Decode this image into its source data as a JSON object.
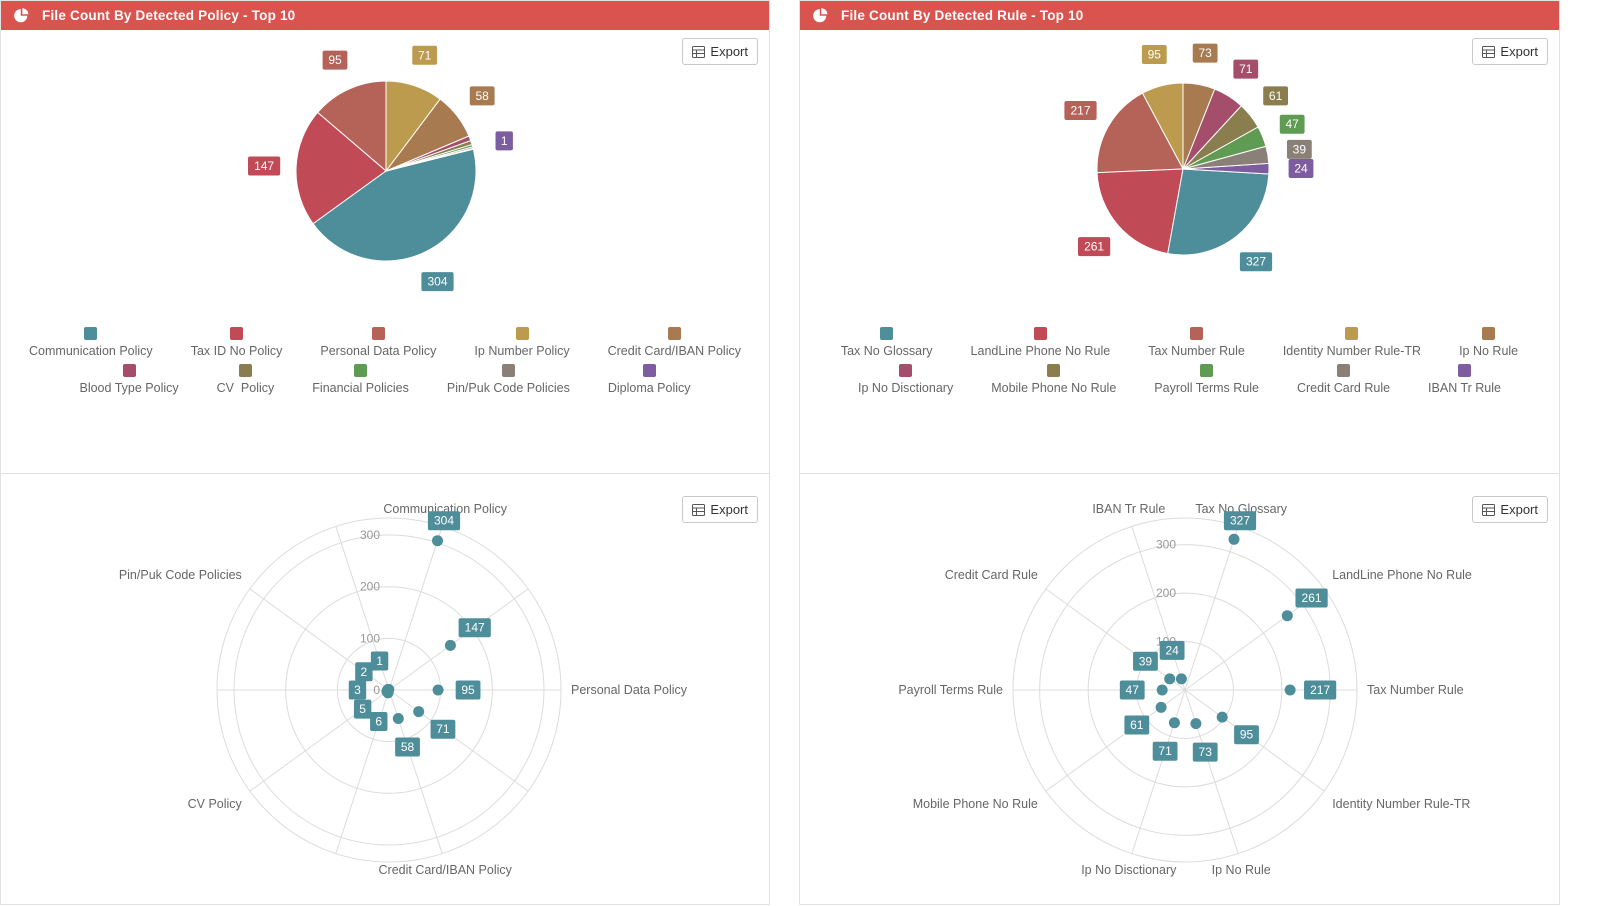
{
  "ui": {
    "export_label": "Export",
    "header_color": "#d9534f",
    "panels": [
      {
        "title": "File Count By Detected Policy - Top 10"
      },
      {
        "title": "File Count By Detected Rule - Top 10"
      }
    ]
  },
  "chart_data": [
    {
      "type": "pie",
      "title": "File Count By Detected Policy - Top 10",
      "legend_position": "bottom",
      "start_angle": 90,
      "series": [
        {
          "name": "Communication Policy",
          "value": 304,
          "color": "#4e8d9a",
          "labeled": true
        },
        {
          "name": "Tax ID No Policy",
          "value": 147,
          "color": "#c04a56",
          "labeled": true
        },
        {
          "name": "Personal Data Policy",
          "value": 95,
          "color": "#b56358",
          "labeled": true
        },
        {
          "name": "Ip Number Policy",
          "value": 71,
          "color": "#bd9b4e",
          "labeled": true
        },
        {
          "name": "Credit Card/IBAN Policy",
          "value": 58,
          "color": "#a87a50",
          "labeled": true
        },
        {
          "name": "Blood Type Policy",
          "value": 6,
          "color": "#a44e6c",
          "labeled": false
        },
        {
          "name": "CV  Policy",
          "value": 5,
          "color": "#8a7d4e",
          "labeled": false
        },
        {
          "name": "Financial Policies",
          "value": 3,
          "color": "#5f9b52",
          "labeled": false
        },
        {
          "name": "Pin/Puk Code Policies",
          "value": 2,
          "color": "#8b8077",
          "labeled": false
        },
        {
          "name": "Diploma Policy",
          "value": 1,
          "color": "#7d5d9f",
          "labeled": true
        }
      ],
      "draw_order_ccw": [
        "Personal Data Policy",
        "Tax ID No Policy",
        "Communication Policy",
        "Diploma Policy",
        "Pin/Puk Code Policies",
        "Financial Policies",
        "CV  Policy",
        "Blood Type Policy",
        "Credit Card/IBAN Policy",
        "Ip Number Policy"
      ]
    },
    {
      "type": "pie",
      "title": "File Count By Detected Rule - Top 10",
      "legend_position": "bottom",
      "start_angle": 90,
      "series": [
        {
          "name": "Tax No Glossary",
          "value": 327,
          "color": "#4e8d9a",
          "labeled": true
        },
        {
          "name": "LandLine Phone No Rule",
          "value": 261,
          "color": "#c04a56",
          "labeled": true
        },
        {
          "name": "Tax Number Rule",
          "value": 217,
          "color": "#b56358",
          "labeled": true
        },
        {
          "name": "Identity Number Rule-TR",
          "value": 95,
          "color": "#bd9b4e",
          "labeled": true
        },
        {
          "name": "Ip No Rule",
          "value": 73,
          "color": "#a87a50",
          "labeled": true
        },
        {
          "name": "Ip No Disctionary",
          "value": 71,
          "color": "#a44e6c",
          "labeled": true
        },
        {
          "name": "Mobile Phone No Rule",
          "value": 61,
          "color": "#8a7d4e",
          "labeled": true
        },
        {
          "name": "Payroll Terms Rule",
          "value": 47,
          "color": "#5f9b52",
          "labeled": true
        },
        {
          "name": "Credit Card Rule",
          "value": 39,
          "color": "#8b8077",
          "labeled": true
        },
        {
          "name": "IBAN Tr Rule",
          "value": 24,
          "color": "#7d5d9f",
          "labeled": true
        }
      ],
      "draw_order_ccw": [
        "Identity Number Rule-TR",
        "Tax Number Rule",
        "LandLine Phone No Rule",
        "Tax No Glossary",
        "IBAN Tr Rule",
        "Credit Card Rule",
        "Payroll Terms Rule",
        "Mobile Phone No Rule",
        "Ip No Disctionary",
        "Ip No Rule"
      ]
    },
    {
      "type": "scatter",
      "subtype": "polar",
      "categories": [
        "Communication Policy",
        "Tax ID No Policy",
        "Personal Data Policy",
        "Ip Number Policy",
        "Credit Card/IBAN Policy",
        "Blood Type Policy",
        "CV  Policy",
        "Financial Policies",
        "Pin/Puk Code Policies",
        "Diploma Policy"
      ],
      "values": [
        304,
        147,
        95,
        71,
        58,
        6,
        5,
        3,
        2,
        1
      ],
      "radial_ticks": [
        0,
        100,
        200,
        300
      ],
      "rmax": 333,
      "start_angle": 72,
      "angle_step": -36,
      "axis_label_every": 2,
      "grid": true,
      "point_color": "#4e8d9a"
    },
    {
      "type": "scatter",
      "subtype": "polar",
      "categories": [
        "Tax No Glossary",
        "LandLine Phone No Rule",
        "Tax Number Rule",
        "Identity Number Rule-TR",
        "Ip No Rule",
        "Ip No Disctionary",
        "Mobile Phone No Rule",
        "Payroll Terms Rule",
        "Credit Card Rule",
        "IBAN Tr Rule"
      ],
      "values": [
        327,
        261,
        217,
        95,
        73,
        71,
        61,
        47,
        39,
        24
      ],
      "radial_ticks": [
        100,
        200,
        300
      ],
      "rmax": 355,
      "start_angle": 72,
      "angle_step": -36,
      "axis_label_every": 1,
      "grid": true,
      "point_color": "#4e8d9a"
    }
  ]
}
